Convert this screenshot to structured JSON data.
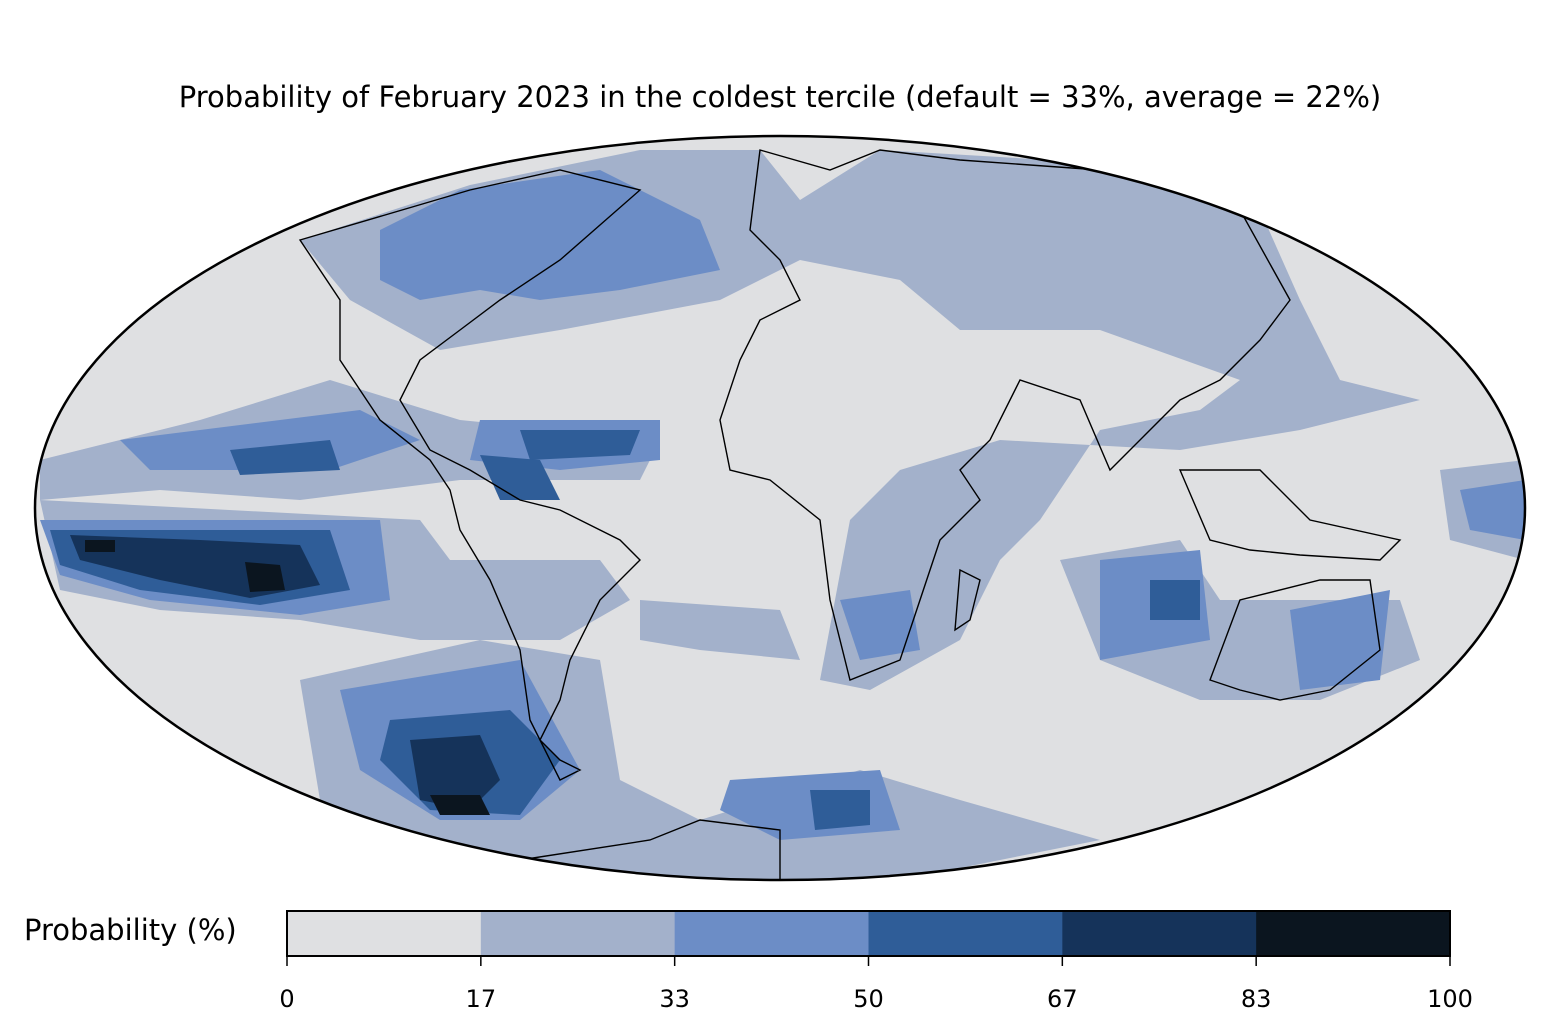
{
  "title": "Probability of February 2023 in the coldest tercile (default = 33%, average = 22%)",
  "colorbar": {
    "label": "Probability (%)",
    "ticks": [
      "0",
      "17",
      "33",
      "50",
      "67",
      "83",
      "100"
    ],
    "bins": [
      {
        "range": "0-17",
        "color": "#dfe0e2"
      },
      {
        "range": "17-33",
        "color": "#a3b1cb"
      },
      {
        "range": "33-50",
        "color": "#6c8dc6"
      },
      {
        "range": "50-67",
        "color": "#2f5d98"
      },
      {
        "range": "67-83",
        "color": "#15335a"
      },
      {
        "range": "83-100",
        "color": "#0b151f"
      }
    ]
  },
  "map": {
    "projection": "mollweide",
    "background_color": "#dfe0e2"
  }
}
